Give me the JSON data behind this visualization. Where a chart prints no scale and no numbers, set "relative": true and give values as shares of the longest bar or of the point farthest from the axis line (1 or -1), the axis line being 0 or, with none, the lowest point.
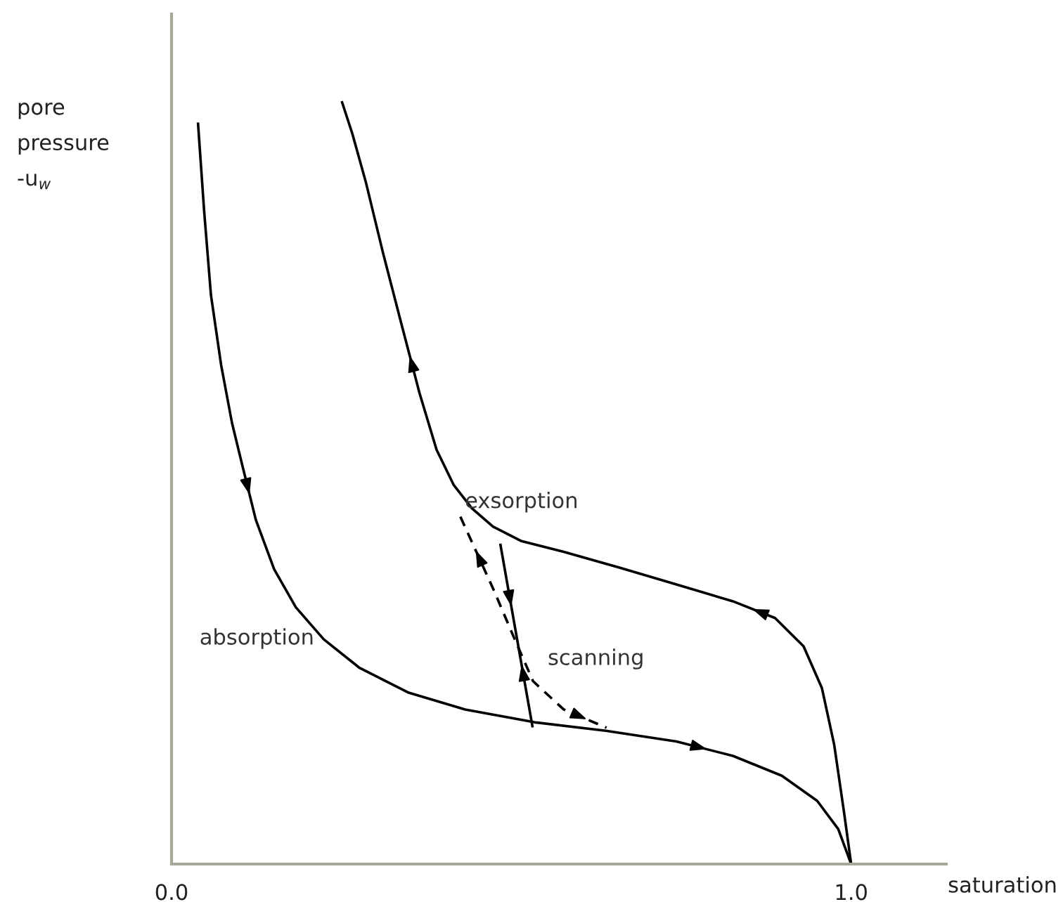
{
  "chart_data": {
    "type": "line",
    "relative": true,
    "xlabel": "saturation",
    "ylabel": "pore\npressure\n-u$_{w}$",
    "xlim": [
      0,
      1.14
    ],
    "xticks": [
      {
        "value": 0,
        "label": "0.0"
      },
      {
        "value": 1,
        "label": "1.0"
      }
    ],
    "tick_labels": "x",
    "grid": false,
    "marker": "none",
    "series": [
      {
        "name": "absorption",
        "color": "#000000",
        "line_style": "solid",
        "x": [
          0.039,
          0.048,
          0.058,
          0.073,
          0.089,
          0.104,
          0.124,
          0.151,
          0.183,
          0.224,
          0.276,
          0.349,
          0.432,
          0.535,
          0.639,
          0.743,
          0.826,
          0.898,
          0.95,
          0.981,
          1.0
        ],
        "values": [
          0.972,
          0.857,
          0.747,
          0.655,
          0.579,
          0.524,
          0.452,
          0.387,
          0.337,
          0.295,
          0.258,
          0.225,
          0.203,
          0.186,
          0.175,
          0.161,
          0.142,
          0.116,
          0.083,
          0.046,
          0.0
        ]
      },
      {
        "name": "exsorption",
        "color": "#000000",
        "line_style": "solid",
        "x": [
          1.0,
          0.99,
          0.975,
          0.957,
          0.93,
          0.888,
          0.826,
          0.743,
          0.66,
          0.577,
          0.515,
          0.473,
          0.442,
          0.415,
          0.39,
          0.365,
          0.338,
          0.311,
          0.286,
          0.266,
          0.251
        ],
        "values": [
          0.0,
          0.065,
          0.157,
          0.231,
          0.286,
          0.323,
          0.345,
          0.367,
          0.389,
          0.41,
          0.424,
          0.443,
          0.467,
          0.498,
          0.544,
          0.618,
          0.71,
          0.803,
          0.895,
          0.959,
          1.0
        ]
      },
      {
        "name": "scanning",
        "color": "#000000",
        "line_style": "solid",
        "x": [
          0.531,
          0.484
        ],
        "values": [
          0.181,
          0.419
        ]
      },
      {
        "color": "#000000",
        "line_style": "dashed",
        "x": [
          0.425,
          0.474,
          0.505,
          0.532,
          0.577,
          0.64
        ],
        "values": [
          0.456,
          0.36,
          0.295,
          0.24,
          0.203,
          0.179
        ]
      }
    ]
  }
}
